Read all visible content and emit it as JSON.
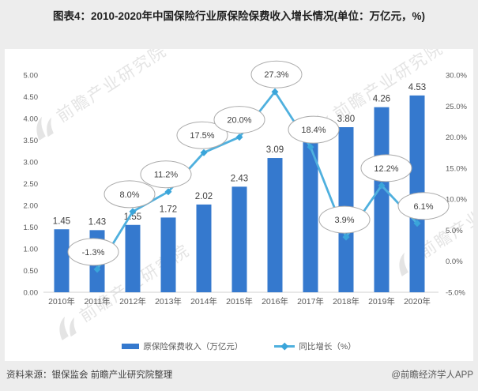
{
  "title": "图表4：2010-2020年中国保险行业原保险保费收入增长情况(单位：万亿元，%)",
  "watermark": {
    "text": "前瞻产业研究院",
    "logo_icon": "qianzhan-logo-icon"
  },
  "legend": [
    {
      "label": "原保险保费收入（万亿元）",
      "type": "bar",
      "color": "#3579CE"
    },
    {
      "label": "同比增长（%）",
      "type": "line",
      "color": "#4FB0DE"
    }
  ],
  "footer": {
    "source": "资料来源：银保监会 前瞻产业研究院整理",
    "brand": "@前瞻经济学人APP"
  },
  "colors": {
    "background": "#EDEDED",
    "panel": "#FFFFFF",
    "bar": "#3579CE",
    "line": "#4FB0DE",
    "marker": "#3AA5DA",
    "callout_border": "#ABABAB",
    "axis_text": "#595959",
    "label_text": "#3F3F3F"
  },
  "chart_data": {
    "type": "bar+line combo",
    "title": "图表4：2010-2020年中国保险行业原保险保费收入增长情况(单位：万亿元，%)",
    "categories": [
      "2010年",
      "2011年",
      "2012年",
      "2013年",
      "2014年",
      "2015年",
      "2016年",
      "2017年",
      "2018年",
      "2019年",
      "2020年"
    ],
    "series": [
      {
        "name": "原保险保费收入（万亿元）",
        "type": "bar",
        "axis": "left",
        "color": "#3579CE",
        "values": [
          1.45,
          1.43,
          1.55,
          1.72,
          2.02,
          2.43,
          3.09,
          3.66,
          3.8,
          4.26,
          4.53
        ],
        "labels": [
          "1.45",
          "1.43",
          "1.55",
          "1.72",
          "2.02",
          "2.43",
          "3.09",
          "",
          "3.80",
          "4.26",
          "4.53"
        ],
        "note": "2017 bar value label is hidden behind the 18.4% callout ellipse; bar height ≈3.66 read from axis"
      },
      {
        "name": "同比增长（%）",
        "type": "line",
        "axis": "right",
        "color": "#4FB0DE",
        "marker_color": "#3AA5DA",
        "marker": "diamond",
        "values": [
          null,
          -1.3,
          8.0,
          11.2,
          17.5,
          20.0,
          27.3,
          18.4,
          3.9,
          12.2,
          6.1
        ],
        "labels": [
          "",
          "-1.3%",
          "8.0%",
          "11.2%",
          "17.5%",
          "20.0%",
          "27.3%",
          "18.4%",
          "3.9%",
          "12.2%",
          "6.1%"
        ],
        "label_style": "white ellipse callouts"
      }
    ],
    "left_axis": {
      "ticks": [
        "0.00",
        "0.50",
        "1.00",
        "1.50",
        "2.00",
        "2.50",
        "3.00",
        "3.50",
        "4.00",
        "4.50",
        "5.00"
      ],
      "min": 0,
      "max": 5
    },
    "right_axis": {
      "ticks": [
        "-5.0%",
        "0.0%",
        "5.0%",
        "10.0%",
        "15.0%",
        "20.0%",
        "25.0%",
        "30.0%"
      ],
      "min": -5,
      "max": 30
    },
    "grid": false,
    "legend_position": "bottom"
  }
}
